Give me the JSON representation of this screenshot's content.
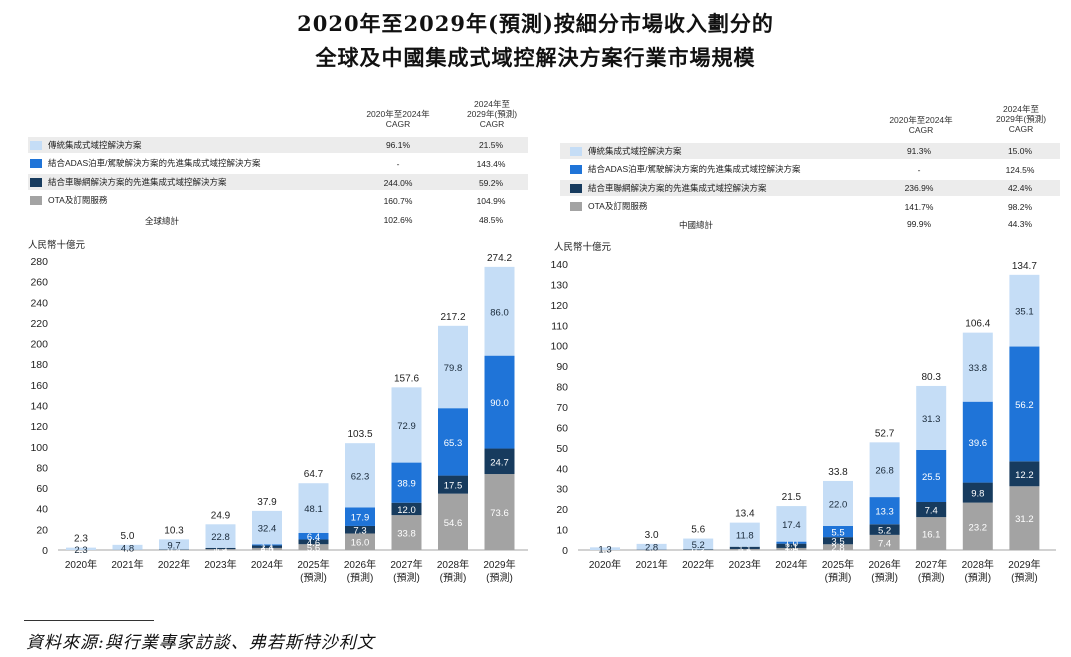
{
  "title_line1": "2020年至2029年(預測)按細分市場收入劃分的",
  "title_line2": "全球及中國集成式域控解決方案行業市場規模",
  "source": "資料來源:與行業專家訪談、弗若斯特沙利文",
  "colors": {
    "traditional": "#c5ddf6",
    "adas": "#1f74d8",
    "connected": "#173b5e",
    "ota": "#a3a3a3",
    "row_shade": "#ececec"
  },
  "chart_data": [
    {
      "type": "bar",
      "stacked": true,
      "unit_label": "人民幣十億元",
      "cagr_headers": [
        "2020年至2024年\nCAGR",
        "2024年至\n2029年(預測)\nCAGR"
      ],
      "legend": [
        {
          "name": "傳統集成式域控解決方案",
          "color": "#c5ddf6",
          "cagr1": "96.1%",
          "cagr2": "21.5%"
        },
        {
          "name": "結合ADAS泊車/駕駛解決方案的先進集成式域控解決方案",
          "color": "#1f74d8",
          "cagr1": "-",
          "cagr2": "143.4%"
        },
        {
          "name": "結合車聯網解決方案的先進集成式域控解決方案",
          "color": "#173b5e",
          "cagr1": "244.0%",
          "cagr2": "59.2%"
        },
        {
          "name": "OTA及訂閱服務",
          "color": "#a3a3a3",
          "cagr1": "160.7%",
          "cagr2": "104.9%"
        }
      ],
      "total_row": {
        "name": "全球總計",
        "cagr1": "102.6%",
        "cagr2": "48.5%"
      },
      "categories": [
        "2020年",
        "2021年",
        "2022年",
        "2023年",
        "2024年",
        "2025年\n(預測)",
        "2026年\n(預測)",
        "2027年\n(預測)",
        "2028年\n(預測)",
        "2029年\n(預測)"
      ],
      "series": [
        {
          "name": "OTA及訂閱服務",
          "values": [
            0,
            0.1,
            0.2,
            0.9,
            2.0,
            5.6,
            16.0,
            33.8,
            54.6,
            73.6
          ]
        },
        {
          "name": "結合車聯網解決方案的先進集成式域控解決方案",
          "values": [
            0,
            0.1,
            0.4,
            1.2,
            2.4,
            4.6,
            7.3,
            12.0,
            17.5,
            24.7
          ]
        },
        {
          "name": "結合ADAS泊車/駕駛解決方案的先進集成式域控解決方案",
          "values": [
            0,
            0,
            0,
            0,
            1.1,
            6.4,
            17.9,
            38.9,
            65.3,
            90.0
          ]
        },
        {
          "name": "傳統集成式域控解決方案",
          "values": [
            2.3,
            4.8,
            9.7,
            22.8,
            32.4,
            48.1,
            62.3,
            72.9,
            79.8,
            86.0
          ]
        }
      ],
      "totals": [
        2.3,
        5.0,
        10.3,
        24.9,
        37.9,
        64.7,
        103.5,
        157.6,
        217.2,
        274.2
      ],
      "ylim": [
        0,
        280
      ],
      "yticks": [
        0,
        20,
        40,
        60,
        80,
        100,
        120,
        140,
        160,
        180,
        200,
        220,
        240,
        260,
        280
      ]
    },
    {
      "type": "bar",
      "stacked": true,
      "unit_label": "人民幣十億元",
      "cagr_headers": [
        "2020年至2024年\nCAGR",
        "2024年至\n2029年(預測)\nCAGR"
      ],
      "legend": [
        {
          "name": "傳統集成式域控解決方案",
          "color": "#c5ddf6",
          "cagr1": "91.3%",
          "cagr2": "15.0%"
        },
        {
          "name": "結合ADAS泊車/駕駛解決方案的先進集成式域控解決方案",
          "color": "#1f74d8",
          "cagr1": "-",
          "cagr2": "124.5%"
        },
        {
          "name": "結合車聯網解決方案的先進集成式域控解決方案",
          "color": "#173b5e",
          "cagr1": "236.9%",
          "cagr2": "42.4%"
        },
        {
          "name": "OTA及訂閱服務",
          "color": "#a3a3a3",
          "cagr1": "141.7%",
          "cagr2": "98.2%"
        }
      ],
      "total_row": {
        "name": "中國總計",
        "cagr1": "99.9%",
        "cagr2": "44.3%"
      },
      "categories": [
        "2020年",
        "2021年",
        "2022年",
        "2023年",
        "2024年",
        "2025年\n(預測)",
        "2026年\n(預測)",
        "2027年\n(預測)",
        "2028年\n(預測)",
        "2029年\n(預測)"
      ],
      "series": [
        {
          "name": "OTA及訂閱服務",
          "values": [
            0,
            0.1,
            0.1,
            0.5,
            1.0,
            2.8,
            7.4,
            16.1,
            23.2,
            31.2
          ]
        },
        {
          "name": "結合車聯網解決方案的先進集成式域控解決方案",
          "values": [
            0,
            0.1,
            0.3,
            1.1,
            2.1,
            3.5,
            5.2,
            7.4,
            9.8,
            12.2
          ]
        },
        {
          "name": "結合ADAS泊車/駕駛解決方案的先進集成式域控解決方案",
          "values": [
            0,
            0,
            0,
            0,
            1.0,
            5.5,
            13.3,
            25.5,
            39.6,
            56.2
          ]
        },
        {
          "name": "傳統集成式域控解決方案",
          "values": [
            1.3,
            2.8,
            5.2,
            11.8,
            17.4,
            22.0,
            26.8,
            31.3,
            33.8,
            35.1
          ]
        }
      ],
      "totals": [
        null,
        3.0,
        5.6,
        13.4,
        21.5,
        33.8,
        52.7,
        80.3,
        106.4,
        134.7
      ],
      "ylim": [
        0,
        140
      ],
      "yticks": [
        0,
        10,
        20,
        30,
        40,
        50,
        60,
        70,
        80,
        90,
        100,
        110,
        120,
        130,
        140
      ]
    }
  ]
}
